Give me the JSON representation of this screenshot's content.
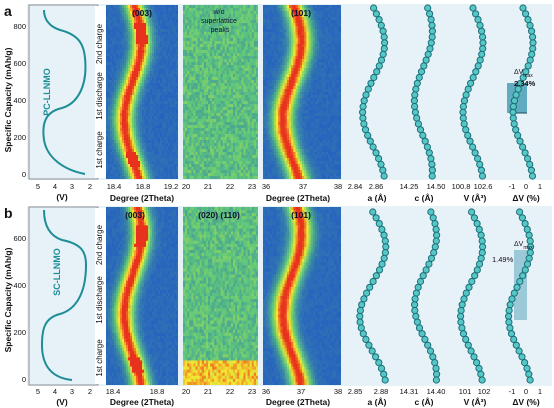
{
  "figure": {
    "y_axis_label": "Specific Capacity (mAh/g)",
    "panels": [
      {
        "id": "a",
        "label": "a",
        "sample": "PC-LLNMO",
        "step_labels": [
          "1st charge",
          "1st discharge",
          "2nd charge"
        ],
        "y_ticks": [
          "0",
          "200",
          "400",
          "600",
          "800"
        ],
        "y_range": [
          0,
          900
        ],
        "voltage": {
          "ticks": [
            "5",
            "4",
            "3",
            "2"
          ],
          "unit_label": "(V)"
        },
        "heatmaps": [
          {
            "title": "(003)",
            "note": "",
            "ticks": [
              "18.4",
              "18.8",
              "19.2"
            ],
            "xlabel": "Degree (2Theta)",
            "style": "peak"
          },
          {
            "title": "",
            "note": "w/o superlattice peaks",
            "ticks": [
              "20",
              "21",
              "22",
              "23"
            ],
            "xlabel": "Degree (2Theta)",
            "style": "flat"
          },
          {
            "title": "(101)",
            "note": "",
            "ticks": [
              "36",
              "37",
              "38"
            ],
            "xlabel": "Degree (2Theta)",
            "style": "peak"
          }
        ],
        "params": [
          {
            "ticks": [
              "2.84",
              "2.86"
            ],
            "xlabel": "a (Å)"
          },
          {
            "ticks": [
              "14.25",
              "14.50"
            ],
            "xlabel": "c (Å)"
          },
          {
            "ticks": [
              "100.8",
              "102.6"
            ],
            "xlabel": "V (Å³)"
          },
          {
            "ticks": [
              "-1",
              "0",
              "1"
            ],
            "xlabel": "ΔV (%)",
            "dv_label": "ΔVmax",
            "dv_value": "2.34%"
          }
        ]
      },
      {
        "id": "b",
        "label": "b",
        "sample": "SC-LLNMO",
        "step_labels": [
          "1st charge",
          "1st discharge",
          "2nd charge"
        ],
        "y_ticks": [
          "0",
          "200",
          "400",
          "600"
        ],
        "y_range": [
          0,
          700
        ],
        "voltage": {
          "ticks": [
            "5",
            "4",
            "3",
            "2"
          ],
          "unit_label": "(V)"
        },
        "heatmaps": [
          {
            "title": "(003)",
            "note": "",
            "ticks": [
              "18.4",
              "18.8"
            ],
            "xlabel": "Degree (2Theta)",
            "style": "peak"
          },
          {
            "title": "(020) (110)",
            "note": "",
            "ticks": [
              "20",
              "21",
              "22",
              "23"
            ],
            "xlabel": "Degree (2Theta)",
            "style": "flat"
          },
          {
            "title": "(101)",
            "note": "",
            "ticks": [
              "36",
              "37",
              "38"
            ],
            "xlabel": "Degree (2Theta)",
            "style": "peak"
          }
        ],
        "params": [
          {
            "ticks": [
              "2.85",
              "2.88"
            ],
            "xlabel": "a (Å)"
          },
          {
            "ticks": [
              "14.31",
              "14.40"
            ],
            "xlabel": "c (Å)"
          },
          {
            "ticks": [
              "101",
              "102"
            ],
            "xlabel": "V (Å³)"
          },
          {
            "ticks": [
              "-1",
              "0",
              "1"
            ],
            "xlabel": "ΔV (%)",
            "dv_label": "ΔVmax",
            "dv_value": "1.49%"
          }
        ]
      }
    ]
  },
  "colors": {
    "panel_bg": "#e7f1f8",
    "curve": "#1d8e96",
    "marker_fill": "#56c7c4",
    "marker_edge": "#1b6f7a",
    "dv_box": "#3e9ab0",
    "hm_low": "#1f55c8",
    "hm_mid": "#5fc87a",
    "hm_high": "#f6ea30",
    "hm_peak": "#e8321e"
  }
}
